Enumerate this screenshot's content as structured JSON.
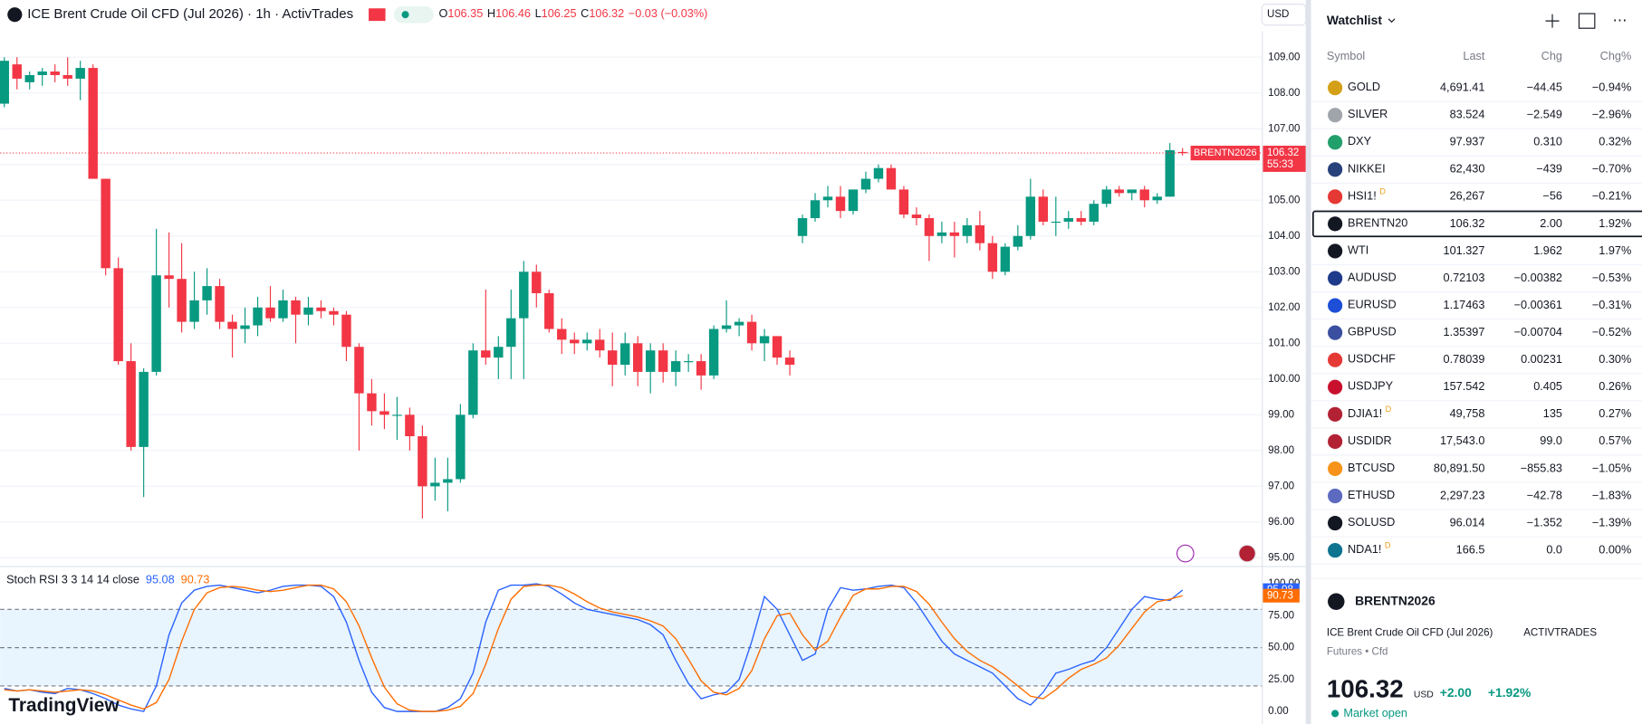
{
  "header": {
    "title": "ICE Brent Crude Oil CFD (Jul 2026) · 1h · ActivTrades",
    "o_label": "O",
    "o": "106.35",
    "h_label": "H",
    "h": "106.46",
    "l_label": "L",
    "l": "106.25",
    "c_label": "C",
    "c": "106.32",
    "change": "−0.03 (−0.03%)",
    "currency": "USD"
  },
  "logo": "TradingView",
  "chart_data": [
    {
      "type": "candlestick",
      "up_color": "#089981",
      "down_color": "#f23645",
      "ylim": [
        94.8,
        110.6
      ],
      "yticks": [
        {
          "value": 95,
          "label": "95.00"
        },
        {
          "value": 96,
          "label": "96.00"
        },
        {
          "value": 97,
          "label": "97.00"
        },
        {
          "value": 98,
          "label": "98.00"
        },
        {
          "value": 99,
          "label": "99.00"
        },
        {
          "value": 100,
          "label": "100.00"
        },
        {
          "value": 101,
          "label": "101.00"
        },
        {
          "value": 102,
          "label": "102.00"
        },
        {
          "value": 103,
          "label": "103.00"
        },
        {
          "value": 104,
          "label": "104.00"
        },
        {
          "value": 105,
          "label": "105.00"
        },
        {
          "value": 106,
          "label": "106.00"
        },
        {
          "value": 107,
          "label": "107.00"
        },
        {
          "value": 108,
          "label": "108.00"
        },
        {
          "value": 109,
          "label": "109.00"
        }
      ],
      "grid": true,
      "last_price": 106.32,
      "countdown": "55:33",
      "symbol_tag": "BRENTN2026",
      "ohlc": [
        [
          107.7,
          109.0,
          107.6,
          108.9
        ],
        [
          108.8,
          109.0,
          108.1,
          108.4
        ],
        [
          108.3,
          108.6,
          108.1,
          108.5
        ],
        [
          108.5,
          108.7,
          108.2,
          108.6
        ],
        [
          108.6,
          108.8,
          108.3,
          108.5
        ],
        [
          108.5,
          109.0,
          108.2,
          108.4
        ],
        [
          108.4,
          108.9,
          107.8,
          108.7
        ],
        [
          108.7,
          108.8,
          105.6,
          105.6
        ],
        [
          105.6,
          105.6,
          102.9,
          103.1
        ],
        [
          103.1,
          103.4,
          100.4,
          100.5
        ],
        [
          100.5,
          101.0,
          98.0,
          98.1
        ],
        [
          98.1,
          100.3,
          96.7,
          100.2
        ],
        [
          100.2,
          104.2,
          100.1,
          102.9
        ],
        [
          102.9,
          104.1,
          102.0,
          102.8
        ],
        [
          102.8,
          103.8,
          101.3,
          101.6
        ],
        [
          101.6,
          103.0,
          101.4,
          102.2
        ],
        [
          102.2,
          103.1,
          101.8,
          102.6
        ],
        [
          102.6,
          102.8,
          101.4,
          101.6
        ],
        [
          101.6,
          101.8,
          100.6,
          101.4
        ],
        [
          101.4,
          102.0,
          101.0,
          101.5
        ],
        [
          101.5,
          102.3,
          101.2,
          102.0
        ],
        [
          102.0,
          102.6,
          101.6,
          101.7
        ],
        [
          101.7,
          102.5,
          101.6,
          102.2
        ],
        [
          102.2,
          102.3,
          101.0,
          101.8
        ],
        [
          101.8,
          102.3,
          101.5,
          102.0
        ],
        [
          102.0,
          102.2,
          101.7,
          101.9
        ],
        [
          101.9,
          102.0,
          101.5,
          101.8
        ],
        [
          101.8,
          101.9,
          100.5,
          100.9
        ],
        [
          100.9,
          101.0,
          98.0,
          99.6
        ],
        [
          99.6,
          100.0,
          98.7,
          99.1
        ],
        [
          99.1,
          99.6,
          98.6,
          99.0
        ],
        [
          99.0,
          99.5,
          98.3,
          99.0
        ],
        [
          99.0,
          99.2,
          98.0,
          98.4
        ],
        [
          98.4,
          98.7,
          96.1,
          97.0
        ],
        [
          97.0,
          97.8,
          96.6,
          97.1
        ],
        [
          97.1,
          97.8,
          96.3,
          97.2
        ],
        [
          97.2,
          99.3,
          97.1,
          99.0
        ],
        [
          99.0,
          101.0,
          98.9,
          100.8
        ],
        [
          100.8,
          102.5,
          100.4,
          100.6
        ],
        [
          100.6,
          101.2,
          100.0,
          100.9
        ],
        [
          100.9,
          102.5,
          100.0,
          101.7
        ],
        [
          101.7,
          103.3,
          100.0,
          103.0
        ],
        [
          103.0,
          103.2,
          102.0,
          102.4
        ],
        [
          102.4,
          102.5,
          101.3,
          101.4
        ],
        [
          101.4,
          101.7,
          100.7,
          101.1
        ],
        [
          101.1,
          101.3,
          100.7,
          101.0
        ],
        [
          101.0,
          101.3,
          100.8,
          101.1
        ],
        [
          101.1,
          101.4,
          100.6,
          100.8
        ],
        [
          100.8,
          101.3,
          99.8,
          100.4
        ],
        [
          100.4,
          101.3,
          100.1,
          101.0
        ],
        [
          101.0,
          101.2,
          99.8,
          100.2
        ],
        [
          100.2,
          101.0,
          99.6,
          100.8
        ],
        [
          100.8,
          101.0,
          99.9,
          100.2
        ],
        [
          100.2,
          100.8,
          99.8,
          100.5
        ],
        [
          100.5,
          100.7,
          100.2,
          100.5
        ],
        [
          100.5,
          100.7,
          99.7,
          100.1
        ],
        [
          100.1,
          101.5,
          100.0,
          101.4
        ],
        [
          101.4,
          102.2,
          101.3,
          101.5
        ],
        [
          101.5,
          101.7,
          101.2,
          101.6
        ],
        [
          101.6,
          101.8,
          100.8,
          101.0
        ],
        [
          101.0,
          101.4,
          100.5,
          101.2
        ],
        [
          101.2,
          101.2,
          100.4,
          100.6
        ],
        [
          100.6,
          100.8,
          100.1,
          100.4
        ],
        [
          104.0,
          104.6,
          103.8,
          104.5
        ],
        [
          104.5,
          105.2,
          104.4,
          105.0
        ],
        [
          105.0,
          105.4,
          104.8,
          105.1
        ],
        [
          105.1,
          105.4,
          104.5,
          104.7
        ],
        [
          104.7,
          105.3,
          104.6,
          105.3
        ],
        [
          105.3,
          105.8,
          105.2,
          105.6
        ],
        [
          105.6,
          106.0,
          105.5,
          105.9
        ],
        [
          105.9,
          106.0,
          105.3,
          105.3
        ],
        [
          105.3,
          105.4,
          104.5,
          104.6
        ],
        [
          104.6,
          104.8,
          104.3,
          104.5
        ],
        [
          104.5,
          104.6,
          103.3,
          104.0
        ],
        [
          104.0,
          104.4,
          103.8,
          104.1
        ],
        [
          104.1,
          104.4,
          103.4,
          104.0
        ],
        [
          104.0,
          104.5,
          103.8,
          104.3
        ],
        [
          104.3,
          104.7,
          103.6,
          103.8
        ],
        [
          103.8,
          104.0,
          102.8,
          103.0
        ],
        [
          103.0,
          103.8,
          102.9,
          103.7
        ],
        [
          103.7,
          104.3,
          103.6,
          104.0
        ],
        [
          104.0,
          105.6,
          103.9,
          105.1
        ],
        [
          105.1,
          105.3,
          104.3,
          104.4
        ],
        [
          104.4,
          105.1,
          104.0,
          104.4
        ],
        [
          104.4,
          104.7,
          104.2,
          104.5
        ],
        [
          104.5,
          104.7,
          104.3,
          104.4
        ],
        [
          104.4,
          105.0,
          104.3,
          104.9
        ],
        [
          104.9,
          105.4,
          104.8,
          105.3
        ],
        [
          105.3,
          105.4,
          105.1,
          105.2
        ],
        [
          105.2,
          105.3,
          105.0,
          105.3
        ],
        [
          105.3,
          105.4,
          104.8,
          105.0
        ],
        [
          105.0,
          105.2,
          104.9,
          105.1
        ],
        [
          105.1,
          106.6,
          105.1,
          106.4
        ],
        [
          106.35,
          106.46,
          106.25,
          106.32
        ]
      ]
    },
    {
      "type": "line",
      "title": "Stoch RSI 3 3 14 14 close",
      "ylim": [
        -8.2,
        110.7
      ],
      "yticks": [
        {
          "value": 0,
          "label": "0.00"
        },
        {
          "value": 25,
          "label": "25.00"
        },
        {
          "value": 50,
          "label": "50.00"
        },
        {
          "value": 75,
          "label": "75.00"
        },
        {
          "value": 100,
          "label": "100.00"
        }
      ],
      "band": [
        20,
        80
      ],
      "hlines": [
        20,
        50,
        80
      ],
      "band_color": "#2196f3",
      "series": [
        {
          "color": "#2962ff",
          "values": [
            18,
            16,
            17,
            15,
            14,
            18,
            17,
            14,
            10,
            5,
            2,
            0,
            20,
            60,
            85,
            95,
            98,
            99,
            97,
            95,
            93,
            95,
            98,
            99,
            99,
            98,
            90,
            70,
            40,
            15,
            3,
            0,
            0,
            0,
            0,
            3,
            10,
            30,
            70,
            95,
            99,
            99,
            100,
            98,
            92,
            85,
            80,
            78,
            76,
            74,
            72,
            68,
            60,
            40,
            22,
            10,
            13,
            15,
            25,
            55,
            90,
            80,
            60,
            40,
            45,
            80,
            97,
            95,
            96,
            98,
            99,
            97,
            85,
            70,
            55,
            45,
            40,
            35,
            30,
            20,
            10,
            5,
            15,
            30,
            33,
            37,
            40,
            50,
            65,
            80,
            90,
            88,
            87,
            95.08
          ]
        },
        {
          "color": "#ff6d00",
          "values": [
            17,
            16,
            17,
            16,
            15,
            16,
            17,
            16,
            13,
            9,
            5,
            2,
            7,
            25,
            55,
            80,
            93,
            97,
            98,
            97,
            95,
            94,
            95,
            97,
            99,
            99,
            96,
            86,
            67,
            42,
            19,
            6,
            1,
            0,
            0,
            1,
            4,
            14,
            37,
            65,
            88,
            98,
            99,
            99,
            97,
            92,
            86,
            81,
            78,
            76,
            74,
            71,
            67,
            57,
            41,
            24,
            15,
            13,
            18,
            32,
            57,
            75,
            77,
            60,
            48,
            55,
            74,
            91,
            96,
            96,
            98,
            98,
            94,
            84,
            70,
            57,
            47,
            40,
            35,
            28,
            20,
            12,
            10,
            17,
            26,
            33,
            37,
            42,
            52,
            65,
            78,
            86,
            88,
            90.73
          ]
        }
      ]
    }
  ],
  "watchlist": {
    "title": "Watchlist",
    "columns": [
      "Symbol",
      "Last",
      "Chg",
      "Chg%"
    ],
    "rows": [
      {
        "symbol": "GOLD",
        "last": "4,691.41",
        "chg": "−44.45",
        "chgp": "−0.94%",
        "icon": "#d4a017"
      },
      {
        "symbol": "SILVER",
        "last": "83.524",
        "chg": "−2.549",
        "chgp": "−2.96%",
        "icon": "#a0a4ab"
      },
      {
        "symbol": "DXY",
        "last": "97.937",
        "chg": "0.310",
        "chgp": "0.32%",
        "icon": "#22a06b"
      },
      {
        "symbol": "NIKKEI",
        "last": "62,430",
        "chg": "−439",
        "chgp": "−0.70%",
        "icon": "#27417a"
      },
      {
        "symbol": "HSI1!",
        "badge": "D",
        "last": "26,267",
        "chg": "−56",
        "chgp": "−0.21%",
        "icon": "#e53935"
      },
      {
        "symbol": "BRENTN20",
        "last": "106.32",
        "chg": "2.00",
        "chgp": "1.92%",
        "icon": "#131722"
      },
      {
        "symbol": "WTI",
        "last": "101.327",
        "chg": "1.962",
        "chgp": "1.97%",
        "icon": "#131722"
      },
      {
        "symbol": "AUDUSD",
        "last": "0.72103",
        "chg": "−0.00382",
        "chgp": "−0.53%",
        "icon": "#1e3a8a"
      },
      {
        "symbol": "EURUSD",
        "last": "1.17463",
        "chg": "−0.00361",
        "chgp": "−0.31%",
        "icon": "#1d4ed8"
      },
      {
        "symbol": "GBPUSD",
        "last": "1.35397",
        "chg": "−0.00704",
        "chgp": "−0.52%",
        "icon": "#3b4fa0"
      },
      {
        "symbol": "USDCHF",
        "last": "0.78039",
        "chg": "0.00231",
        "chgp": "0.30%",
        "icon": "#e53935"
      },
      {
        "symbol": "USDJPY",
        "last": "157.542",
        "chg": "0.405",
        "chgp": "0.26%",
        "icon": "#c8102e"
      },
      {
        "symbol": "DJIA1!",
        "badge": "D",
        "last": "49,758",
        "chg": "135",
        "chgp": "0.27%",
        "icon": "#b22234"
      },
      {
        "symbol": "USDIDR",
        "last": "17,543.0",
        "chg": "99.0",
        "chgp": "0.57%",
        "icon": "#b22234"
      },
      {
        "symbol": "BTCUSD",
        "last": "80,891.50",
        "chg": "−855.83",
        "chgp": "−1.05%",
        "icon": "#f7931a"
      },
      {
        "symbol": "ETHUSD",
        "last": "2,297.23",
        "chg": "−42.78",
        "chgp": "−1.83%",
        "icon": "#5c6bc0"
      },
      {
        "symbol": "SOLUSD",
        "last": "96.014",
        "chg": "−1.352",
        "chgp": "−1.39%",
        "icon": "#131722"
      },
      {
        "symbol": "NDA1!",
        "badge": "D",
        "last": "166.5",
        "chg": "0.0",
        "chgp": "0.00%",
        "icon": "#0e7490"
      }
    ],
    "active": 5
  },
  "details": {
    "symbol": "BRENTN2026",
    "name": "ICE Brent Crude Oil CFD (Jul 2026)",
    "exchange": "ACTIVTRADES",
    "kind": "Futures • Cfd",
    "price": "106.32",
    "currency": "USD",
    "chg": "+2.00",
    "chgp": "+1.92%",
    "status": "Market open"
  }
}
